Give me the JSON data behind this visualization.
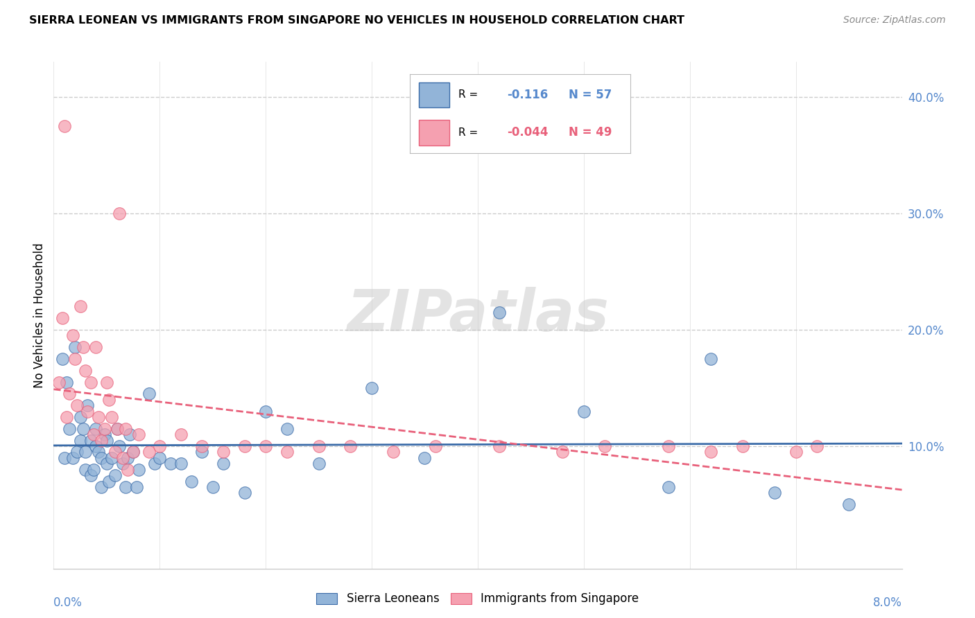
{
  "title": "SIERRA LEONEAN VS IMMIGRANTS FROM SINGAPORE NO VEHICLES IN HOUSEHOLD CORRELATION CHART",
  "source": "Source: ZipAtlas.com",
  "ylabel": "No Vehicles in Household",
  "xmin": 0.0,
  "xmax": 0.08,
  "ymin": -0.005,
  "ymax": 0.43,
  "watermark": "ZIPatlas",
  "color_blue": "#92B4D8",
  "color_pink": "#F5A0B0",
  "trendline_blue": "#3A6BA8",
  "trendline_pink": "#E8607A",
  "tick_color": "#5588CC",
  "background": "#FFFFFF",
  "sierra_x": [
    0.0008,
    0.001,
    0.0012,
    0.0015,
    0.0018,
    0.002,
    0.0022,
    0.0025,
    0.0025,
    0.0028,
    0.003,
    0.003,
    0.0032,
    0.0035,
    0.0035,
    0.0038,
    0.004,
    0.004,
    0.0042,
    0.0045,
    0.0045,
    0.0048,
    0.005,
    0.005,
    0.0052,
    0.0055,
    0.0058,
    0.006,
    0.0062,
    0.0065,
    0.0068,
    0.007,
    0.0072,
    0.0075,
    0.0078,
    0.008,
    0.009,
    0.0095,
    0.01,
    0.011,
    0.012,
    0.013,
    0.014,
    0.015,
    0.016,
    0.018,
    0.02,
    0.022,
    0.025,
    0.03,
    0.035,
    0.042,
    0.05,
    0.058,
    0.062,
    0.068,
    0.075
  ],
  "sierra_y": [
    0.175,
    0.09,
    0.155,
    0.115,
    0.09,
    0.185,
    0.095,
    0.125,
    0.105,
    0.115,
    0.095,
    0.08,
    0.135,
    0.105,
    0.075,
    0.08,
    0.115,
    0.1,
    0.095,
    0.09,
    0.065,
    0.11,
    0.105,
    0.085,
    0.07,
    0.09,
    0.075,
    0.115,
    0.1,
    0.085,
    0.065,
    0.09,
    0.11,
    0.095,
    0.065,
    0.08,
    0.145,
    0.085,
    0.09,
    0.085,
    0.085,
    0.07,
    0.095,
    0.065,
    0.085,
    0.06,
    0.13,
    0.115,
    0.085,
    0.15,
    0.09,
    0.215,
    0.13,
    0.065,
    0.175,
    0.06,
    0.05
  ],
  "singapore_x": [
    0.0005,
    0.0008,
    0.001,
    0.0012,
    0.0015,
    0.0018,
    0.002,
    0.0022,
    0.0025,
    0.0028,
    0.003,
    0.0032,
    0.0035,
    0.0038,
    0.004,
    0.0042,
    0.0045,
    0.0048,
    0.005,
    0.0052,
    0.0055,
    0.0058,
    0.006,
    0.0062,
    0.0065,
    0.0068,
    0.007,
    0.0075,
    0.008,
    0.009,
    0.01,
    0.012,
    0.014,
    0.016,
    0.018,
    0.02,
    0.022,
    0.025,
    0.028,
    0.032,
    0.036,
    0.042,
    0.048,
    0.052,
    0.058,
    0.062,
    0.065,
    0.07,
    0.072
  ],
  "singapore_y": [
    0.155,
    0.21,
    0.375,
    0.125,
    0.145,
    0.195,
    0.175,
    0.135,
    0.22,
    0.185,
    0.165,
    0.13,
    0.155,
    0.11,
    0.185,
    0.125,
    0.105,
    0.115,
    0.155,
    0.14,
    0.125,
    0.095,
    0.115,
    0.3,
    0.09,
    0.115,
    0.08,
    0.095,
    0.11,
    0.095,
    0.1,
    0.11,
    0.1,
    0.095,
    0.1,
    0.1,
    0.095,
    0.1,
    0.1,
    0.095,
    0.1,
    0.1,
    0.095,
    0.1,
    0.1,
    0.095,
    0.1,
    0.095,
    0.1
  ]
}
